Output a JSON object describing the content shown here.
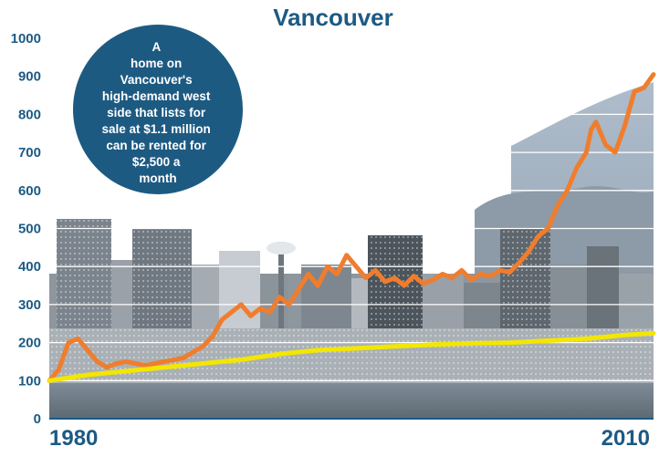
{
  "chart_data": {
    "type": "line",
    "title": "Vancouver",
    "xlabel": "",
    "ylabel": "",
    "xlim": [
      1980,
      2011.5
    ],
    "ylim": [
      0,
      1000
    ],
    "yticks": [
      0,
      100,
      200,
      300,
      400,
      500,
      600,
      700,
      800,
      900,
      1000
    ],
    "xtick_labels": [
      "1980",
      "2010"
    ],
    "grid": true,
    "annotation": {
      "lines": [
        "A",
        "home on",
        "Vancouver's",
        "high-demand west",
        "side that lists for",
        "sale at $1.1 million",
        "can be rented for",
        "$2,500 a",
        "month"
      ]
    },
    "series": [
      {
        "color": "#f07d2d",
        "x": [
          1980,
          1980.5,
          1981,
          1981.5,
          1982,
          1982.5,
          1983,
          1983.5,
          1984,
          1984.5,
          1985,
          1985.5,
          1986,
          1986.5,
          1987,
          1987.5,
          1988,
          1988.5,
          1989,
          1989.5,
          1990,
          1990.5,
          1991,
          1991.5,
          1992,
          1992.5,
          1993,
          1993.5,
          1994,
          1994.5,
          1995,
          1995.5,
          1996,
          1996.5,
          1997,
          1997.5,
          1998,
          1998.5,
          1999,
          1999.5,
          2000,
          2000.5,
          2001,
          2001.5,
          2002,
          2002.5,
          2003,
          2003.5,
          2004,
          2004.5,
          2005,
          2005.5,
          2006,
          2006.5,
          2007,
          2007.5,
          2008,
          2008.25,
          2008.5,
          2009,
          2009.5,
          2010,
          2010.5,
          2011,
          2011.5
        ],
        "values": [
          100,
          130,
          200,
          210,
          180,
          150,
          135,
          145,
          150,
          145,
          140,
          145,
          150,
          155,
          160,
          175,
          190,
          215,
          260,
          280,
          300,
          270,
          290,
          280,
          320,
          300,
          340,
          380,
          350,
          400,
          380,
          430,
          400,
          370,
          390,
          360,
          370,
          350,
          375,
          355,
          365,
          380,
          370,
          390,
          365,
          380,
          375,
          390,
          385,
          410,
          440,
          480,
          500,
          560,
          600,
          660,
          700,
          760,
          780,
          720,
          700,
          770,
          860,
          870,
          905
        ]
      },
      {
        "color": "#f3e600",
        "x": [
          1980,
          1982,
          1984,
          1986,
          1988,
          1990,
          1992,
          1994,
          1996,
          1998,
          2000,
          2002,
          2004,
          2006,
          2008,
          2010,
          2011.5
        ],
        "values": [
          100,
          115,
          125,
          135,
          145,
          155,
          170,
          180,
          185,
          190,
          195,
          198,
          200,
          205,
          210,
          220,
          225
        ]
      }
    ]
  }
}
